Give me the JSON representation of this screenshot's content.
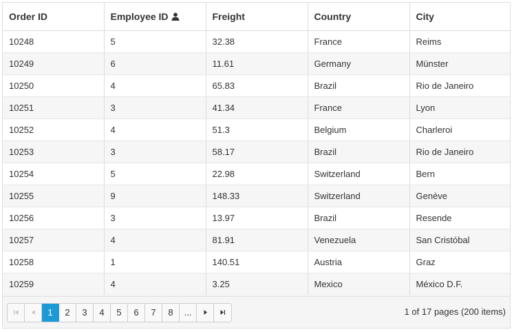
{
  "grid": {
    "columns": [
      {
        "label": "Order ID"
      },
      {
        "label": "Employee ID",
        "icon": "user-icon"
      },
      {
        "label": "Freight"
      },
      {
        "label": "Country"
      },
      {
        "label": "City"
      }
    ],
    "rows": [
      [
        "10248",
        "5",
        "32.38",
        "France",
        "Reims"
      ],
      [
        "10249",
        "6",
        "11.61",
        "Germany",
        "Münster"
      ],
      [
        "10250",
        "4",
        "65.83",
        "Brazil",
        "Rio de Janeiro"
      ],
      [
        "10251",
        "3",
        "41.34",
        "France",
        "Lyon"
      ],
      [
        "10252",
        "4",
        "51.3",
        "Belgium",
        "Charleroi"
      ],
      [
        "10253",
        "3",
        "58.17",
        "Brazil",
        "Rio de Janeiro"
      ],
      [
        "10254",
        "5",
        "22.98",
        "Switzerland",
        "Bern"
      ],
      [
        "10255",
        "9",
        "148.33",
        "Switzerland",
        "Genève"
      ],
      [
        "10256",
        "3",
        "13.97",
        "Brazil",
        "Resende"
      ],
      [
        "10257",
        "4",
        "81.91",
        "Venezuela",
        "San Cristóbal"
      ],
      [
        "10258",
        "1",
        "140.51",
        "Austria",
        "Graz"
      ],
      [
        "10259",
        "4",
        "3.25",
        "Mexico",
        "México D.F."
      ]
    ]
  },
  "pager": {
    "pages": [
      "1",
      "2",
      "3",
      "4",
      "5",
      "6",
      "7",
      "8"
    ],
    "more_label": "...",
    "current_page": "1",
    "info": "1 of 17 pages (200 items)",
    "icons": [
      "first-page-icon",
      "prev-page-icon",
      "next-page-icon",
      "last-page-icon"
    ],
    "colors": {
      "accent": "#1d9ad6",
      "stripe": "#f6f6f6",
      "border": "#dddddd"
    }
  }
}
